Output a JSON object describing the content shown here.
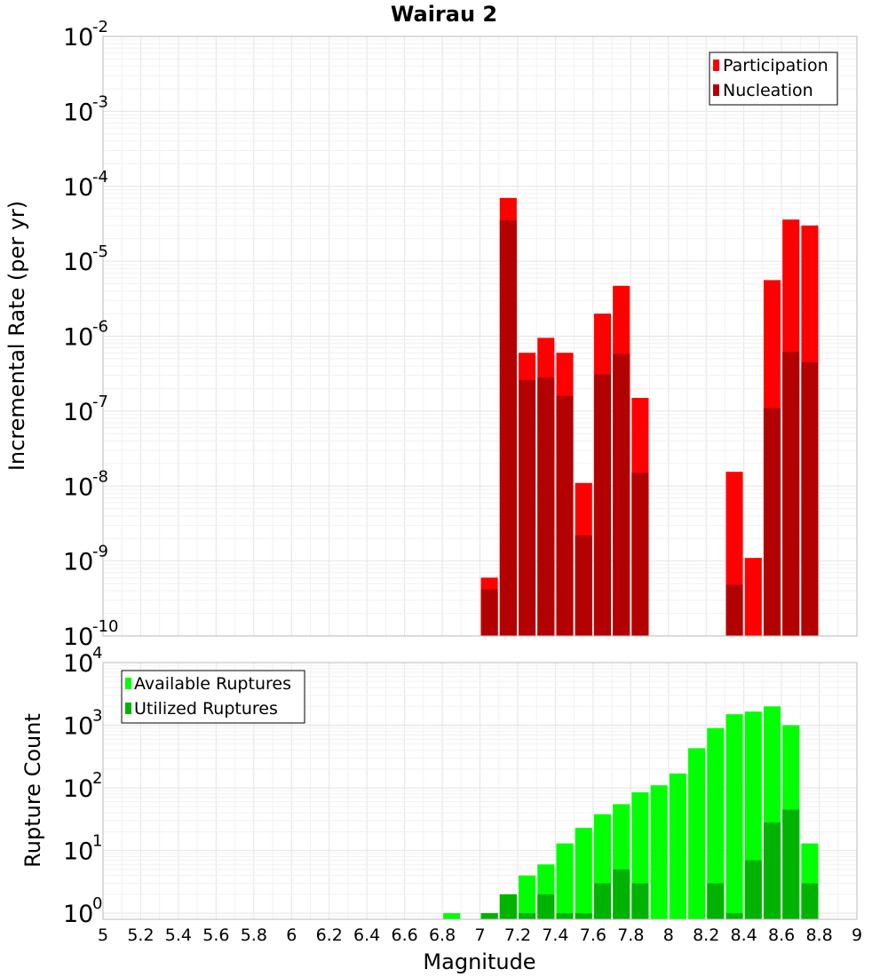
{
  "chart_data": [
    {
      "type": "bar",
      "title": "Wairau 2",
      "ylabel": "Incremental Rate (per yr)",
      "xlabel": "",
      "yscale": "log",
      "ylim": [
        1e-10,
        0.01
      ],
      "xlim": [
        5,
        9
      ],
      "grid": true,
      "legend_position": "top-right",
      "y_tick_exponents": [
        "-10",
        "-9",
        "-8",
        "-7",
        "-6",
        "-5",
        "-4",
        "-3",
        "-2"
      ],
      "y_tick_base": "10",
      "bar_width": 0.09,
      "series": [
        {
          "name": "Participation",
          "color": "#ff0000",
          "points": [
            {
              "x": 7.05,
              "y": 6e-10
            },
            {
              "x": 7.15,
              "y": 7e-05
            },
            {
              "x": 7.25,
              "y": 6e-07
            },
            {
              "x": 7.35,
              "y": 9.5e-07
            },
            {
              "x": 7.45,
              "y": 6e-07
            },
            {
              "x": 7.55,
              "y": 1.1e-08
            },
            {
              "x": 7.65,
              "y": 2e-06
            },
            {
              "x": 7.75,
              "y": 4.7e-06
            },
            {
              "x": 7.85,
              "y": 1.5e-07
            },
            {
              "x": 8.35,
              "y": 1.55e-08
            },
            {
              "x": 8.45,
              "y": 1.1e-09
            },
            {
              "x": 8.55,
              "y": 5.6e-06
            },
            {
              "x": 8.65,
              "y": 3.6e-05
            },
            {
              "x": 8.75,
              "y": 3e-05
            }
          ]
        },
        {
          "name": "Nucleation",
          "color": "#b30000",
          "points": [
            {
              "x": 7.05,
              "y": 4.2e-10
            },
            {
              "x": 7.15,
              "y": 3.5e-05
            },
            {
              "x": 7.25,
              "y": 2.6e-07
            },
            {
              "x": 7.35,
              "y": 2.8e-07
            },
            {
              "x": 7.45,
              "y": 1.6e-07
            },
            {
              "x": 7.55,
              "y": 2.2e-09
            },
            {
              "x": 7.65,
              "y": 3.1e-07
            },
            {
              "x": 7.75,
              "y": 5.8e-07
            },
            {
              "x": 7.85,
              "y": 1.5e-08
            },
            {
              "x": 8.35,
              "y": 4.8e-10
            },
            {
              "x": 8.55,
              "y": 1.1e-07
            },
            {
              "x": 8.65,
              "y": 6.2e-07
            },
            {
              "x": 8.75,
              "y": 4.5e-07
            }
          ]
        }
      ]
    },
    {
      "type": "bar",
      "title": "",
      "ylabel": "Rupture Count",
      "xlabel": "Magnitude",
      "yscale": "log",
      "ylim": [
        0.8,
        10000.0
      ],
      "xlim": [
        5,
        9
      ],
      "grid": true,
      "legend_position": "top-left",
      "x_ticks": [
        "5",
        "5.2",
        "5.4",
        "5.6",
        "5.8",
        "6",
        "6.2",
        "6.4",
        "6.6",
        "6.8",
        "7",
        "7.2",
        "7.4",
        "7.6",
        "7.8",
        "8",
        "8.2",
        "8.4",
        "8.6",
        "8.8",
        "9"
      ],
      "y_tick_exponents": [
        "0",
        "1",
        "2",
        "3",
        "4"
      ],
      "y_tick_base": "10",
      "bar_width": 0.09,
      "series": [
        {
          "name": "Available Ruptures",
          "color": "#00ff00",
          "points": [
            {
              "x": 6.85,
              "y": 1
            },
            {
              "x": 7.05,
              "y": 1
            },
            {
              "x": 7.15,
              "y": 2
            },
            {
              "x": 7.25,
              "y": 4
            },
            {
              "x": 7.35,
              "y": 6
            },
            {
              "x": 7.45,
              "y": 13
            },
            {
              "x": 7.55,
              "y": 23
            },
            {
              "x": 7.65,
              "y": 38
            },
            {
              "x": 7.75,
              "y": 55
            },
            {
              "x": 7.85,
              "y": 85
            },
            {
              "x": 7.95,
              "y": 110
            },
            {
              "x": 8.05,
              "y": 170
            },
            {
              "x": 8.15,
              "y": 430
            },
            {
              "x": 8.25,
              "y": 900
            },
            {
              "x": 8.35,
              "y": 1500
            },
            {
              "x": 8.45,
              "y": 1650
            },
            {
              "x": 8.55,
              "y": 2000
            },
            {
              "x": 8.65,
              "y": 1000
            },
            {
              "x": 8.75,
              "y": 13
            }
          ]
        },
        {
          "name": "Utilized Ruptures",
          "color": "#00b300",
          "points": [
            {
              "x": 7.05,
              "y": 1
            },
            {
              "x": 7.15,
              "y": 2
            },
            {
              "x": 7.25,
              "y": 1
            },
            {
              "x": 7.35,
              "y": 2
            },
            {
              "x": 7.45,
              "y": 1
            },
            {
              "x": 7.55,
              "y": 1
            },
            {
              "x": 7.65,
              "y": 3
            },
            {
              "x": 7.75,
              "y": 5
            },
            {
              "x": 7.85,
              "y": 3
            },
            {
              "x": 8.25,
              "y": 3
            },
            {
              "x": 8.35,
              "y": 1
            },
            {
              "x": 8.45,
              "y": 7
            },
            {
              "x": 8.55,
              "y": 28
            },
            {
              "x": 8.65,
              "y": 45
            },
            {
              "x": 8.75,
              "y": 3
            }
          ]
        }
      ]
    }
  ]
}
